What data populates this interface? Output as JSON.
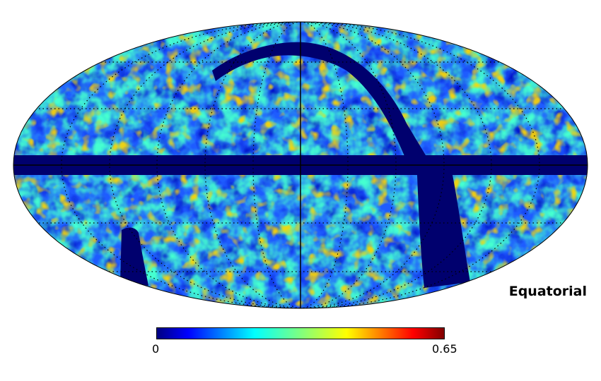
{
  "map": {
    "projection_label": "Equatorial",
    "colormap": [
      "#00007f",
      "#0000ff",
      "#007fff",
      "#00ffff",
      "#7fff7f",
      "#ffff00",
      "#ff7f00",
      "#ff0000",
      "#7f0000"
    ],
    "mask_color": "#00006e",
    "graticule": true
  },
  "colorbar": {
    "min_label": "0",
    "max_label": "0.65",
    "min": 0,
    "max": 0.65
  }
}
